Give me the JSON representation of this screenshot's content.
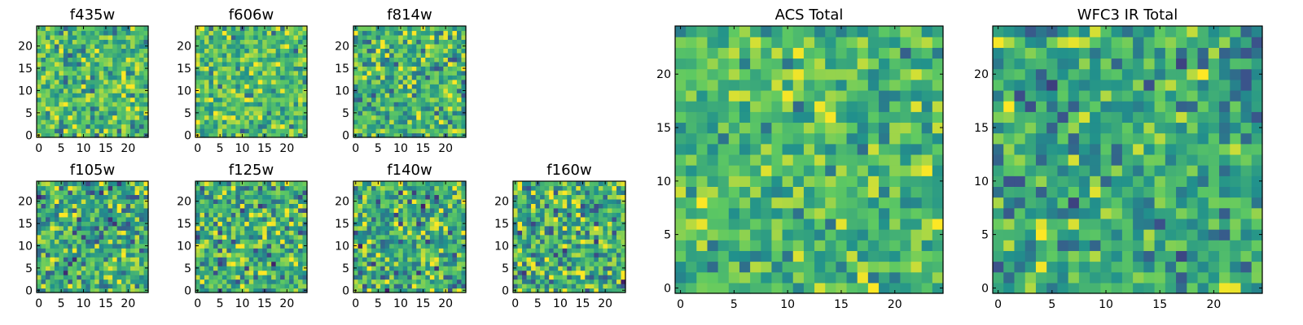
{
  "figure": {
    "colormap": "viridis",
    "colormap_stops": [
      "#440154",
      "#3b528b",
      "#21918c",
      "#5ec962",
      "#fde725"
    ],
    "grid": false,
    "legend": "none"
  },
  "chart_data": [
    {
      "type": "heatmap",
      "title": "f435w",
      "shape": [
        25,
        25
      ],
      "xlim": [
        -0.5,
        24.5
      ],
      "ylim": [
        -0.5,
        24.5
      ],
      "xticks": [
        0,
        5,
        10,
        15,
        20
      ],
      "yticks": [
        0,
        5,
        10,
        15,
        20
      ],
      "typical_value": 0.68,
      "value_spread": 0.16
    },
    {
      "type": "heatmap",
      "title": "f606w",
      "shape": [
        25,
        25
      ],
      "xlim": [
        -0.5,
        24.5
      ],
      "ylim": [
        -0.5,
        24.5
      ],
      "xticks": [
        0,
        5,
        10,
        15,
        20
      ],
      "yticks": [
        0,
        5,
        10,
        15,
        20
      ],
      "typical_value": 0.68,
      "value_spread": 0.16
    },
    {
      "type": "heatmap",
      "title": "f814w",
      "shape": [
        25,
        25
      ],
      "xlim": [
        -0.5,
        24.5
      ],
      "ylim": [
        -0.5,
        24.5
      ],
      "xticks": [
        0,
        5,
        10,
        15,
        20
      ],
      "yticks": [
        0,
        5,
        10,
        15,
        20
      ],
      "typical_value": 0.66,
      "value_spread": 0.18
    },
    {
      "type": "heatmap",
      "title": "f105w",
      "shape": [
        25,
        25
      ],
      "xlim": [
        -0.5,
        24.5
      ],
      "ylim": [
        -0.5,
        24.5
      ],
      "xticks": [
        0,
        5,
        10,
        15,
        20
      ],
      "yticks": [
        0,
        5,
        10,
        15,
        20
      ],
      "typical_value": 0.62,
      "value_spread": 0.2
    },
    {
      "type": "heatmap",
      "title": "f125w",
      "shape": [
        25,
        25
      ],
      "xlim": [
        -0.5,
        24.5
      ],
      "ylim": [
        -0.5,
        24.5
      ],
      "xticks": [
        0,
        5,
        10,
        15,
        20
      ],
      "yticks": [
        0,
        5,
        10,
        15,
        20
      ],
      "typical_value": 0.64,
      "value_spread": 0.2
    },
    {
      "type": "heatmap",
      "title": "f140w",
      "shape": [
        25,
        25
      ],
      "xlim": [
        -0.5,
        24.5
      ],
      "ylim": [
        -0.5,
        24.5
      ],
      "xticks": [
        0,
        5,
        10,
        15,
        20
      ],
      "yticks": [
        0,
        5,
        10,
        15,
        20
      ],
      "typical_value": 0.62,
      "value_spread": 0.2
    },
    {
      "type": "heatmap",
      "title": "f160w",
      "shape": [
        25,
        25
      ],
      "xlim": [
        -0.5,
        24.5
      ],
      "ylim": [
        -0.5,
        24.5
      ],
      "xticks": [
        0,
        5,
        10,
        15,
        20
      ],
      "yticks": [
        0,
        5,
        10,
        15,
        20
      ],
      "typical_value": 0.64,
      "value_spread": 0.2
    },
    {
      "type": "heatmap",
      "title": "ACS Total",
      "shape": [
        25,
        25
      ],
      "xlim": [
        -0.5,
        24.5
      ],
      "ylim": [
        -0.5,
        24.5
      ],
      "xticks": [
        0,
        5,
        10,
        15,
        20
      ],
      "yticks": [
        0,
        5,
        10,
        15,
        20
      ],
      "typical_value": 0.67,
      "value_spread": 0.14
    },
    {
      "type": "heatmap",
      "title": "WFC3 IR Total",
      "shape": [
        25,
        25
      ],
      "xlim": [
        -0.5,
        24.5
      ],
      "ylim": [
        -0.5,
        24.5
      ],
      "xticks": [
        0,
        5,
        10,
        15,
        20
      ],
      "yticks": [
        0,
        5,
        10,
        15,
        20
      ],
      "typical_value": 0.6,
      "value_spread": 0.16
    }
  ]
}
